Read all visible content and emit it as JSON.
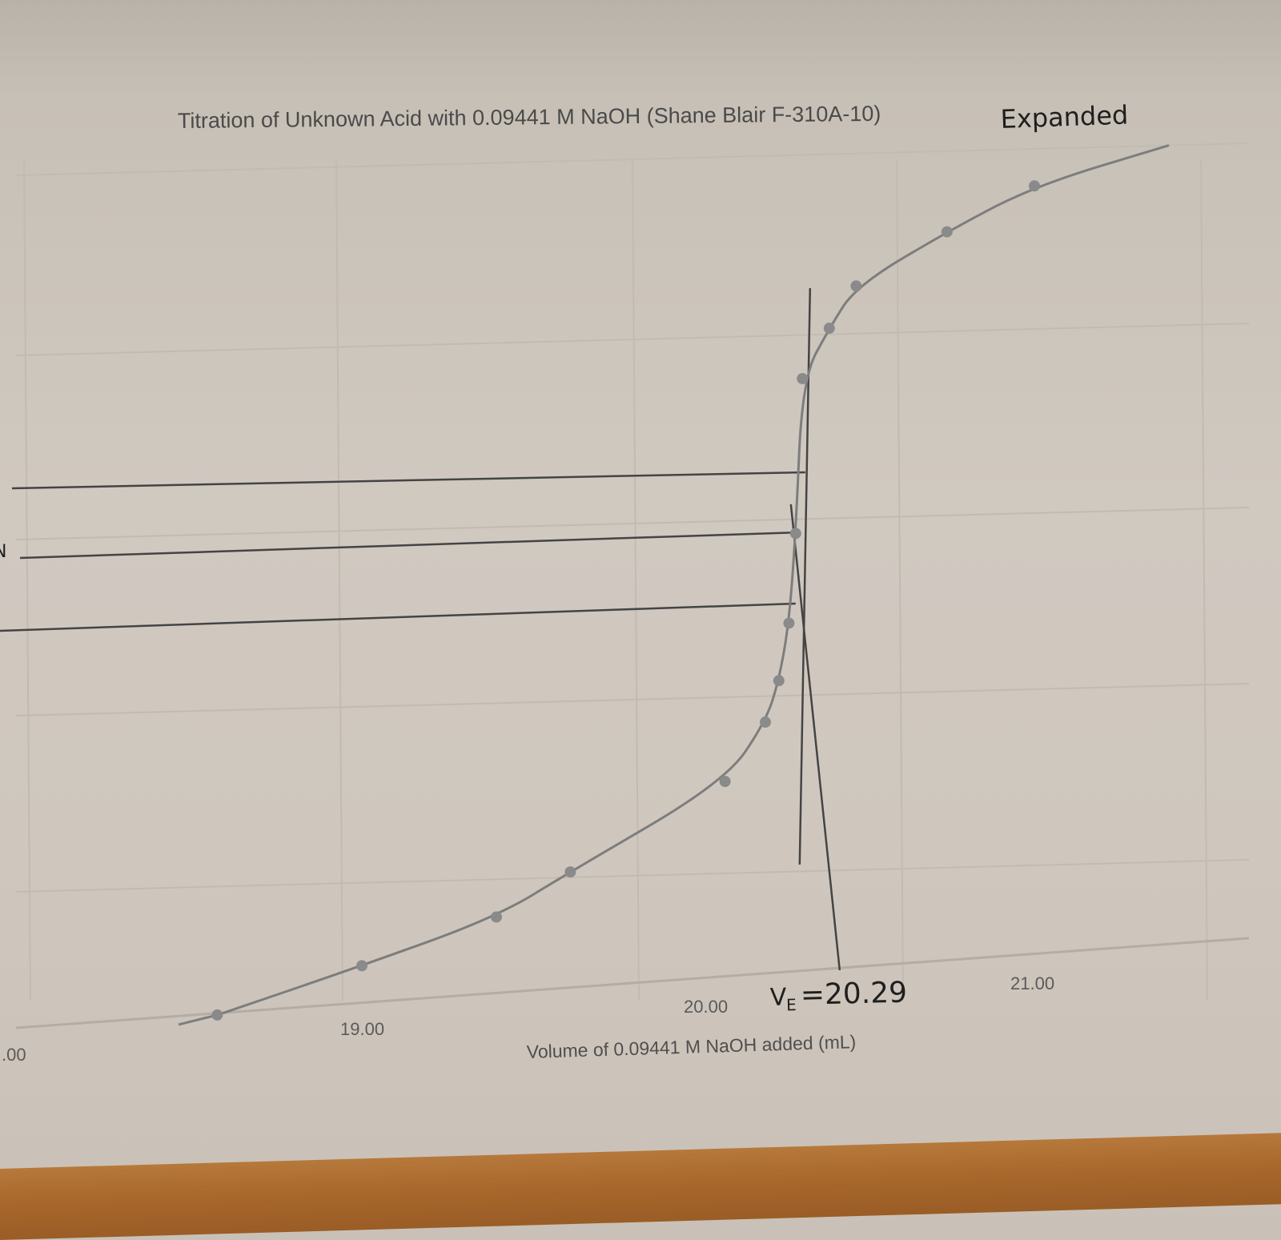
{
  "chart_data": {
    "type": "line",
    "title": "Titration of Unknown Acid with 0.09441 M NaOH (Shane Blair F-310A-10)",
    "title_annotation": "Expanded",
    "xlabel": "Volume of 0.09441 M NaOH added (mL)",
    "ylabel": "",
    "x_tick_labels": [
      "19.00",
      "20.00",
      "21.00"
    ],
    "left_edge_tick_fragment": ".00",
    "xlim": [
      18.55,
      21.2
    ],
    "ylim": [
      0,
      1
    ],
    "grid": true,
    "legend": "none",
    "series": [
      {
        "x": [
          18.57,
          19.0,
          19.4,
          19.62,
          20.08,
          20.2,
          20.24,
          20.27,
          20.29,
          20.31,
          20.39,
          20.47,
          20.74,
          21.0,
          21.4
        ],
        "y": [
          0.0,
          0.05,
          0.1,
          0.15,
          0.25,
          0.32,
          0.37,
          0.44,
          0.55,
          0.74,
          0.8,
          0.85,
          0.91,
          0.96,
          1.0
        ]
      }
    ],
    "annotations": {
      "equivalence_label": "V",
      "equivalence_subscript": "E",
      "equivalence_value": "=20.29",
      "left_margin_mark": "N",
      "equivalence_x": 20.29
    },
    "colors": {
      "curve": "#7d7d7d",
      "marker": "#8a8a8a",
      "pencil": "#444444",
      "grid": "#c2bbb2"
    }
  }
}
